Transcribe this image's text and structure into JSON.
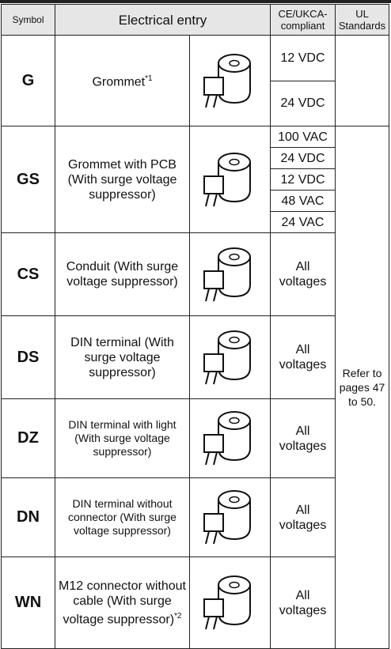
{
  "header": {
    "symbol": "Symbol",
    "entry": "Electrical entry",
    "ce": "CE/UKCA-compliant",
    "ul": "UL Standards"
  },
  "rows": [
    {
      "symbol": "G",
      "entry": "Grommet",
      "note": "*1",
      "ce": [
        "12 VDC",
        "24 VDC"
      ]
    },
    {
      "symbol": "GS",
      "entry": "Grommet with PCB (With surge voltage suppressor)",
      "ce": [
        "100 VAC",
        "24 VDC",
        "12 VDC",
        "48 VAC",
        "24 VAC"
      ]
    },
    {
      "symbol": "CS",
      "entry": "Conduit (With surge voltage suppressor)",
      "ce": [
        "All voltages"
      ]
    },
    {
      "symbol": "DS",
      "entry": "DIN terminal (With surge voltage suppressor)",
      "ce": [
        "All voltages"
      ]
    },
    {
      "symbol": "DZ",
      "entry": "DIN terminal with light (With surge voltage suppressor)",
      "ce": [
        "All voltages"
      ]
    },
    {
      "symbol": "DN",
      "entry": "DIN terminal without connector (With surge voltage suppressor)",
      "ce": [
        "All voltages"
      ]
    },
    {
      "symbol": "WN",
      "entry": "M12 connector without cable (With surge voltage suppressor)",
      "note": "*2",
      "ce": [
        "All voltages"
      ]
    }
  ],
  "ul_note": "Refer to pages 47 to 50."
}
